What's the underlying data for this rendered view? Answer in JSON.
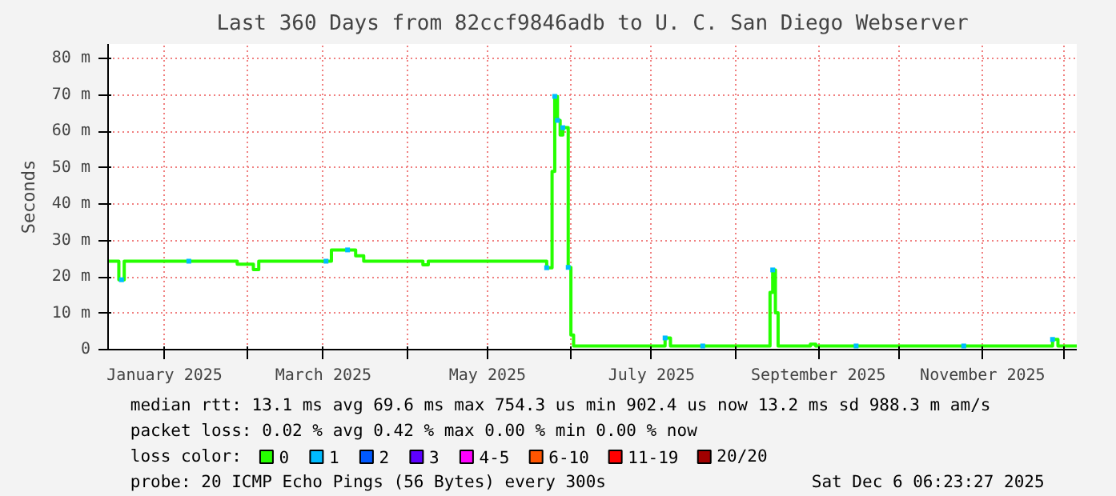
{
  "chart_data": {
    "type": "step",
    "title": "Last 360 Days from 82ccf9846adb to U. C. San Diego Webserver",
    "ylabel": "Seconds",
    "xlim": [
      "2024-12-11",
      "2025-12-06"
    ],
    "ylim": [
      0,
      84
    ],
    "yticks": [
      0,
      {
        "value": 10,
        "label": "10 m"
      },
      {
        "value": 20,
        "label": "20 m"
      },
      {
        "value": 30,
        "label": "30 m"
      },
      {
        "value": 40,
        "label": "40 m"
      },
      {
        "value": 50,
        "label": "50 m"
      },
      {
        "value": 60,
        "label": "60 m"
      },
      {
        "value": 70,
        "label": "70 m"
      },
      {
        "value": 80,
        "label": "80 m"
      }
    ],
    "xticks": [
      {
        "value": "2025-01-01",
        "label": "January 2025"
      },
      {
        "value": "2025-02-01",
        "label": null
      },
      {
        "value": "2025-03-01",
        "label": "March 2025"
      },
      {
        "value": "2025-04-01",
        "label": null
      },
      {
        "value": "2025-05-01",
        "label": "May 2025"
      },
      {
        "value": "2025-06-01",
        "label": null
      },
      {
        "value": "2025-07-01",
        "label": "July 2025"
      },
      {
        "value": "2025-08-01",
        "label": null
      },
      {
        "value": "2025-09-01",
        "label": "September 2025"
      },
      {
        "value": "2025-10-01",
        "label": null
      },
      {
        "value": "2025-11-01",
        "label": "November 2025"
      },
      {
        "value": "2025-12-01",
        "label": null
      }
    ],
    "grid": true,
    "legend": "bottom",
    "legend_title": "loss color:",
    "series": [
      {
        "name": "0",
        "color": "#26ff00",
        "x": [
          "2024-12-11",
          "2024-12-15",
          "2024-12-17",
          "2025-01-28",
          "2025-01-30",
          "2025-02-03",
          "2025-02-05",
          "2025-03-04",
          "2025-03-13",
          "2025-03-16",
          "2025-04-07",
          "2025-04-09",
          "2025-05-23",
          "2025-05-25",
          "2025-05-26",
          "2025-05-27",
          "2025-05-28",
          "2025-05-29",
          "2025-05-31",
          "2025-06-01",
          "2025-06-02",
          "2025-07-06",
          "2025-07-08",
          "2025-08-14",
          "2025-08-15",
          "2025-08-16",
          "2025-08-17",
          "2025-08-29",
          "2025-08-31",
          "2025-11-27",
          "2025-11-29",
          "2025-12-06"
        ],
        "values": [
          24.3,
          19.2,
          24.3,
          23.5,
          23.5,
          22,
          24.3,
          27.4,
          25.8,
          24.3,
          23.3,
          24.3,
          22.5,
          49,
          69.6,
          63,
          59,
          61,
          22.6,
          4,
          1,
          3.2,
          1,
          15.7,
          21.9,
          10.1,
          1,
          1.5,
          1,
          2.8,
          1,
          1
        ]
      },
      {
        "name": "1",
        "color": "#00bbff",
        "type": "scatter",
        "x": [
          "2024-12-16",
          "2025-01-10",
          "2025-03-02",
          "2025-03-10",
          "2025-05-23",
          "2025-05-26",
          "2025-05-27",
          "2025-05-29",
          "2025-05-31",
          "2025-07-06",
          "2025-07-20",
          "2025-08-15",
          "2025-09-15",
          "2025-10-25",
          "2025-11-27"
        ],
        "values": [
          19.2,
          24.3,
          24.3,
          27.4,
          22.5,
          69.6,
          63,
          61,
          22.6,
          3.2,
          1,
          21.9,
          1,
          1,
          2.8
        ]
      },
      {
        "name": "2",
        "color": "#0059ff",
        "type": "scatter"
      },
      {
        "name": "3",
        "color": "#5e00ff",
        "type": "scatter"
      },
      {
        "name": "4-5",
        "color": "#ff00ff",
        "type": "scatter"
      },
      {
        "name": "6-10",
        "color": "#ff5500",
        "type": "scatter"
      },
      {
        "name": "11-19",
        "color": "#ff0000",
        "type": "scatter"
      },
      {
        "name": "20/20",
        "color": "#a10000",
        "type": "scatter"
      }
    ],
    "annotations": [
      "median rtt:  13.1 ms avg  69.6 ms max  754.3 us min  902.4 us now  13.2 ms sd  988.3 m am/s",
      "packet loss: 0.02 % avg  0.42 % max  0.00 % min  0.00 % now",
      "probe:        20 ICMP Echo Pings (56 Bytes) every 300s",
      "Sat Dec  6 06:23:27 2025"
    ]
  }
}
